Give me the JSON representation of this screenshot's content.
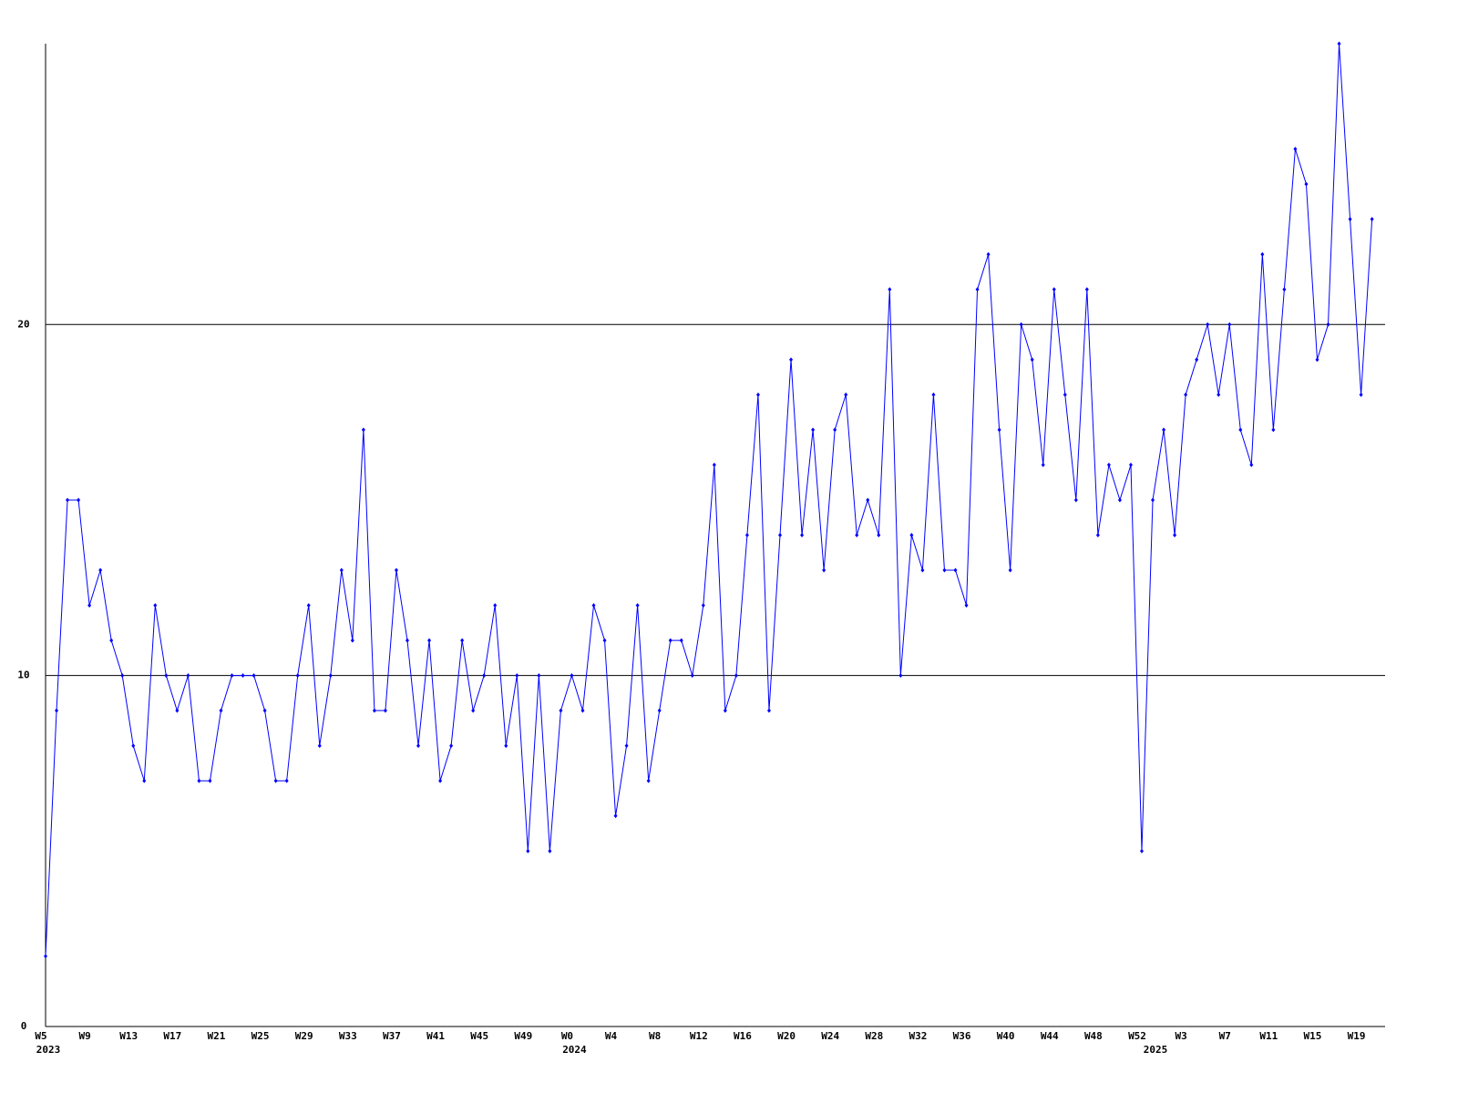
{
  "chart_data": {
    "type": "line",
    "categories": [
      "W5",
      null,
      null,
      null,
      "W9",
      null,
      null,
      null,
      "W13",
      null,
      null,
      null,
      "W17",
      null,
      null,
      null,
      "W21",
      null,
      null,
      null,
      "W25",
      null,
      null,
      null,
      "W29",
      null,
      null,
      null,
      "W33",
      null,
      null,
      null,
      "W37",
      null,
      null,
      null,
      "W41",
      null,
      null,
      null,
      "W45",
      null,
      null,
      null,
      "W49",
      null,
      null,
      null,
      "W0",
      null,
      null,
      null,
      "W4",
      null,
      null,
      null,
      "W8",
      null,
      null,
      null,
      "W12",
      null,
      null,
      null,
      "W16",
      null,
      null,
      null,
      "W20",
      null,
      null,
      null,
      "W24",
      null,
      null,
      null,
      "W28",
      null,
      null,
      null,
      "W32",
      null,
      null,
      null,
      "W36",
      null,
      null,
      null,
      "W40",
      null,
      null,
      null,
      "W44",
      null,
      null,
      null,
      "W48",
      null,
      null,
      null,
      "W52",
      null,
      null,
      null,
      "W3",
      null,
      null,
      null,
      "W7",
      null,
      null,
      null,
      "W11",
      null,
      null,
      null,
      "W15",
      null,
      null,
      null,
      "W19",
      null
    ],
    "years": [
      "2023",
      null,
      null,
      null,
      null,
      null,
      null,
      null,
      null,
      null,
      null,
      null,
      null,
      null,
      null,
      null,
      null,
      null,
      null,
      null,
      null,
      null,
      null,
      null,
      null,
      null,
      null,
      null,
      null,
      null,
      null,
      null,
      null,
      null,
      null,
      null,
      null,
      null,
      null,
      null,
      null,
      null,
      null,
      null,
      null,
      null,
      null,
      null,
      "2024",
      null,
      null,
      null,
      null,
      null,
      null,
      null,
      null,
      null,
      null,
      null,
      null,
      null,
      null,
      null,
      null,
      null,
      null,
      null,
      null,
      null,
      null,
      null,
      null,
      null,
      null,
      null,
      null,
      null,
      null,
      null,
      null,
      null,
      null,
      null,
      null,
      null,
      null,
      null,
      null,
      null,
      null,
      null,
      null,
      null,
      null,
      null,
      null,
      null,
      null,
      null,
      null,
      "2025",
      null,
      null,
      null,
      null,
      null,
      null,
      null,
      null,
      null,
      null,
      null,
      null,
      null,
      null,
      null,
      null,
      null,
      null,
      null,
      null
    ],
    "series": [
      {
        "color": "#0000ff",
        "values": [
          2,
          9,
          15,
          15,
          12,
          13,
          11,
          10,
          8,
          7,
          12,
          10,
          9,
          10,
          7,
          7,
          9,
          10,
          10,
          10,
          9,
          7,
          7,
          10,
          12,
          8,
          10,
          13,
          11,
          17,
          9,
          9,
          13,
          11,
          8,
          11,
          7,
          8,
          11,
          9,
          10,
          12,
          8,
          10,
          5,
          10,
          5,
          9,
          10,
          9,
          12,
          11,
          6,
          8,
          12,
          7,
          9,
          11,
          11,
          10,
          12,
          16,
          9,
          10,
          14,
          18,
          9,
          14,
          19,
          14,
          17,
          13,
          17,
          18,
          14,
          15,
          14,
          21,
          10,
          14,
          13,
          18,
          13,
          13,
          12,
          21,
          22,
          17,
          13,
          20,
          19,
          16,
          21,
          18,
          15,
          21,
          14,
          16,
          15,
          16,
          5,
          15,
          17,
          14,
          18,
          19,
          20,
          18,
          20,
          17,
          16,
          22,
          17,
          21,
          25,
          24,
          19,
          20,
          28,
          23,
          18,
          23
        ]
      }
    ],
    "ylim": [
      0,
      28
    ],
    "yticks": [
      0,
      10,
      20
    ],
    "grid": true
  }
}
